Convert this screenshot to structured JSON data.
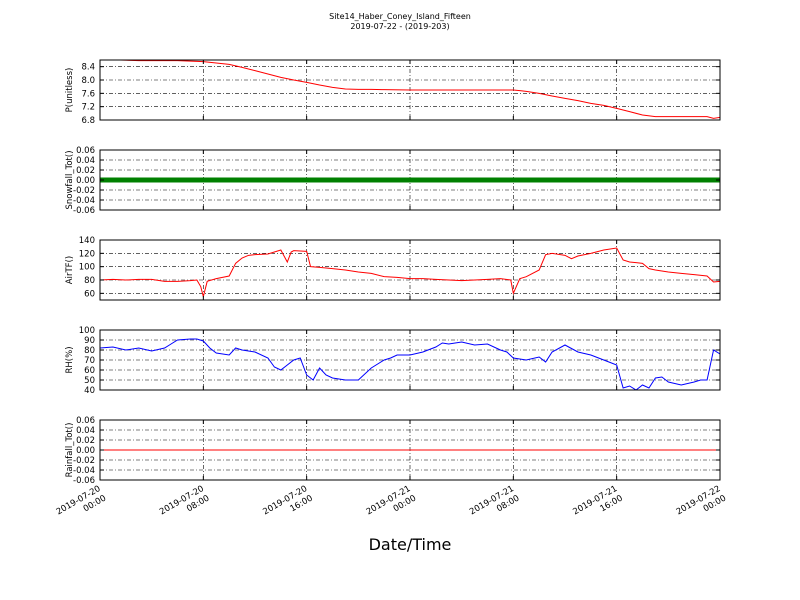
{
  "figure": {
    "title_line1": "Site14_Haber_Coney_Island_Fifteen",
    "title_line2": "2019-07-22 - (2019-203)",
    "xlabel": "Date/Time",
    "x_tick_labels": [
      [
        "2019-07-20",
        "00:00"
      ],
      [
        "2019-07-20",
        "08:00"
      ],
      [
        "2019-07-20",
        "16:00"
      ],
      [
        "2019-07-21",
        "00:00"
      ],
      [
        "2019-07-21",
        "08:00"
      ],
      [
        "2019-07-21",
        "16:00"
      ],
      [
        "2019-07-22",
        "00:00"
      ]
    ]
  },
  "chart_data": [
    {
      "type": "line",
      "ylabel": "P(unitless)",
      "ylim": [
        6.8,
        8.6
      ],
      "yticks": [
        6.8,
        7.2,
        7.6,
        8.0,
        8.4
      ],
      "ytick_labels": [
        "6.8",
        "7.2",
        "7.6",
        "8.0",
        "8.4"
      ],
      "xlim": [
        0,
        48
      ],
      "grid": true,
      "color": "#ff0000",
      "series": [
        {
          "x": [
            0,
            3,
            6,
            8,
            10,
            11,
            12,
            13,
            14,
            15,
            16,
            17,
            18,
            19,
            20,
            21,
            22,
            24,
            26,
            28,
            30,
            32,
            32.5,
            33,
            34,
            35,
            36,
            37,
            38,
            39,
            40,
            41,
            42,
            43,
            44,
            45,
            46,
            47,
            47.5,
            48
          ],
          "y": [
            8.62,
            8.58,
            8.58,
            8.55,
            8.47,
            8.38,
            8.28,
            8.18,
            8.08,
            8.0,
            7.93,
            7.85,
            7.78,
            7.73,
            7.72,
            7.72,
            7.71,
            7.7,
            7.7,
            7.7,
            7.7,
            7.7,
            7.68,
            7.66,
            7.6,
            7.52,
            7.45,
            7.38,
            7.3,
            7.24,
            7.15,
            7.05,
            6.95,
            6.9,
            6.9,
            6.9,
            6.9,
            6.9,
            6.85,
            6.88
          ]
        }
      ]
    },
    {
      "type": "line",
      "ylabel": "Snowfall_Tot()",
      "ylim": [
        -0.06,
        0.06
      ],
      "yticks": [
        -0.06,
        -0.04,
        -0.02,
        0.0,
        0.02,
        0.04,
        0.06
      ],
      "ytick_labels": [
        "-0.06",
        "-0.04",
        "-0.02",
        "0.00",
        "0.02",
        "0.04",
        "0.06"
      ],
      "xlim": [
        0,
        48
      ],
      "grid": true,
      "color": "#008000",
      "marker": "dots",
      "series": [
        {
          "x": [
            0,
            48
          ],
          "y": [
            0,
            0
          ]
        }
      ]
    },
    {
      "type": "line",
      "ylabel": "AirTF()",
      "ylim": [
        50,
        140
      ],
      "yticks": [
        60,
        80,
        100,
        120,
        140
      ],
      "ytick_labels": [
        "60",
        "80",
        "100",
        "120",
        "140"
      ],
      "xlim": [
        0,
        48
      ],
      "grid": true,
      "color": "#ff0000",
      "series": [
        {
          "x": [
            0,
            1,
            2,
            3,
            4,
            5,
            6,
            7,
            7.5,
            7.8,
            8.0,
            8.3,
            9,
            10,
            10.5,
            11,
            11.5,
            12,
            13,
            14,
            14.5,
            14.8,
            15,
            16,
            16.3,
            17,
            18,
            19,
            20,
            21,
            22,
            23,
            24,
            25,
            26,
            27,
            28,
            29,
            30,
            31,
            31.8,
            32,
            32.5,
            33,
            34,
            34.5,
            35,
            36,
            36.5,
            37,
            38,
            39,
            40,
            40.5,
            41,
            42,
            42.5,
            43,
            44,
            45,
            46,
            47,
            47.5,
            48
          ],
          "y": [
            80,
            81,
            80,
            81,
            81,
            78,
            78,
            79,
            80,
            70,
            55,
            78,
            82,
            86,
            105,
            113,
            117,
            118,
            119,
            125,
            107,
            122,
            124,
            123,
            100,
            99,
            97,
            95,
            92,
            90,
            85,
            84,
            82,
            82,
            81,
            80,
            79,
            80,
            81,
            82,
            80,
            60,
            82,
            85,
            95,
            118,
            120,
            117,
            112,
            116,
            120,
            125,
            128,
            110,
            107,
            105,
            97,
            95,
            92,
            90,
            88,
            86,
            77,
            78
          ]
        }
      ]
    },
    {
      "type": "line",
      "ylabel": "RH(%)",
      "ylim": [
        40,
        100
      ],
      "yticks": [
        40,
        50,
        60,
        70,
        80,
        90,
        100
      ],
      "ytick_labels": [
        "40",
        "50",
        "60",
        "70",
        "80",
        "90",
        "100"
      ],
      "xlim": [
        0,
        48
      ],
      "grid": true,
      "color": "#0000ff",
      "series": [
        {
          "x": [
            0,
            1,
            2,
            3,
            4,
            5,
            5.5,
            6,
            7,
            7.5,
            8,
            8.5,
            9,
            10,
            10.5,
            11,
            12,
            13,
            13.5,
            14,
            14.5,
            15,
            15.5,
            16,
            16.5,
            17,
            17.5,
            18,
            19,
            20,
            21,
            22,
            22.5,
            23,
            24,
            25,
            26,
            26.5,
            27,
            28,
            29,
            30,
            31,
            31.5,
            32,
            33,
            34,
            34.5,
            35,
            36,
            37,
            38,
            39,
            40,
            40.5,
            41,
            41.5,
            42,
            42.5,
            43,
            43.5,
            44,
            45,
            46,
            46.5,
            47,
            47.5,
            48
          ],
          "y": [
            82,
            83,
            80,
            82,
            79,
            82,
            86,
            90,
            91,
            91,
            89,
            82,
            77,
            75,
            82,
            80,
            78,
            72,
            63,
            60,
            65,
            70,
            72,
            55,
            50,
            62,
            55,
            52,
            50,
            50,
            62,
            70,
            72,
            75,
            75,
            78,
            83,
            87,
            86,
            88,
            85,
            86,
            80,
            78,
            72,
            70,
            73,
            68,
            78,
            85,
            78,
            75,
            70,
            65,
            42,
            44,
            40,
            45,
            42,
            52,
            53,
            48,
            45,
            48,
            50,
            50,
            80,
            76
          ]
        }
      ]
    },
    {
      "type": "line",
      "ylabel": "Rainfall_Tot()",
      "ylim": [
        -0.06,
        0.06
      ],
      "yticks": [
        -0.06,
        -0.04,
        -0.02,
        0.0,
        0.02,
        0.04,
        0.06
      ],
      "ytick_labels": [
        "-0.06",
        "-0.04",
        "-0.02",
        "0.00",
        "0.02",
        "0.04",
        "0.06"
      ],
      "xlim": [
        0,
        48
      ],
      "grid": true,
      "color": "#ff0000",
      "series": [
        {
          "x": [
            0,
            48
          ],
          "y": [
            0,
            0
          ]
        }
      ]
    }
  ]
}
